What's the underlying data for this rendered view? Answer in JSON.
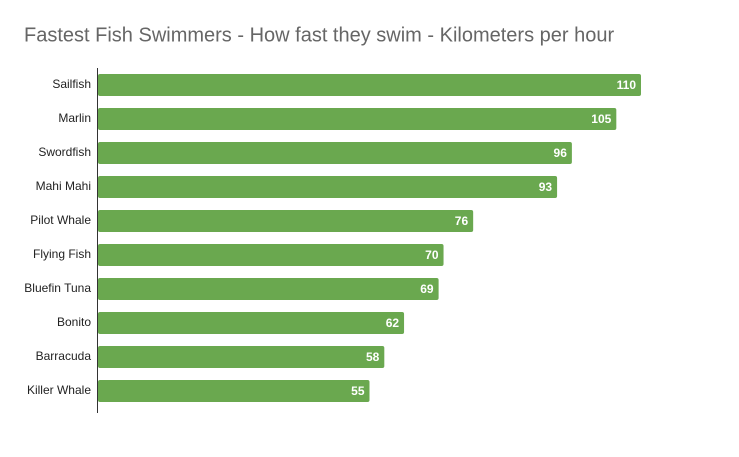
{
  "chart_data": {
    "type": "bar",
    "orientation": "horizontal",
    "title": "Fastest Fish Swimmers - How fast they swim - Kilometers per hour",
    "categories": [
      "Sailfish",
      "Marlin",
      "Swordfish",
      "Mahi Mahi",
      "Pilot Whale",
      "Flying Fish",
      "Bluefin Tuna",
      "Bonito",
      "Barracuda",
      "Killer Whale"
    ],
    "values": [
      110,
      105,
      96,
      93,
      76,
      70,
      69,
      62,
      58,
      55
    ],
    "color": "#6aa84f"
  }
}
